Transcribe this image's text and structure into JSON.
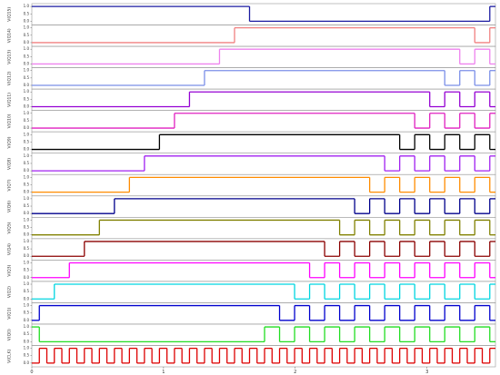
{
  "chart_data": {
    "type": "step",
    "xlim": [
      0,
      3.52
    ],
    "xticks": [
      0,
      1,
      2,
      3
    ],
    "ylim": [
      -0.1,
      1.1
    ],
    "yticks": [
      {
        "value": 0,
        "label": "0.0"
      },
      {
        "value": 0.5,
        "label": "0.5"
      },
      {
        "value": 1,
        "label": "1.0"
      }
    ],
    "series": [
      {
        "name": "V(Q15)",
        "color": "#1a1aa0",
        "x": [
          0,
          1.653,
          3.477
        ],
        "values": [
          1,
          0,
          1
        ]
      },
      {
        "name": "V(Q14)",
        "color": "#f08080",
        "x": [
          0,
          1.539,
          3.363,
          3.477
        ],
        "values": [
          0,
          1,
          0,
          1
        ]
      },
      {
        "name": "V(Q13)",
        "color": "#ee82ee",
        "x": [
          0,
          1.425,
          3.249,
          3.363,
          3.477
        ],
        "values": [
          0,
          1,
          0,
          1,
          0
        ]
      },
      {
        "name": "V(Q12)",
        "color": "#7b8fe8",
        "x": [
          0,
          1.311,
          3.135,
          3.249,
          3.363,
          3.477
        ],
        "values": [
          0,
          1,
          0,
          1,
          0,
          1
        ]
      },
      {
        "name": "V(Q11)",
        "color": "#9400d3",
        "x": [
          0,
          1.197,
          3.021,
          3.135,
          3.249,
          3.363,
          3.477
        ],
        "values": [
          0,
          1,
          0,
          1,
          0,
          1,
          0
        ]
      },
      {
        "name": "V(Q10)",
        "color": "#e020c0",
        "x": [
          0,
          1.083,
          2.907,
          3.021,
          3.135,
          3.249,
          3.363,
          3.477
        ],
        "values": [
          0,
          1,
          0,
          1,
          0,
          1,
          0,
          1
        ]
      },
      {
        "name": "V(Q9)",
        "color": "#000000",
        "x": [
          0,
          0.969,
          2.793,
          2.907,
          3.021,
          3.135,
          3.249,
          3.363,
          3.477
        ],
        "values": [
          0,
          1,
          0,
          1,
          0,
          1,
          0,
          1,
          0
        ]
      },
      {
        "name": "V(Q8)",
        "color": "#a020f0",
        "x": [
          0,
          0.855,
          2.679,
          2.793,
          2.907,
          3.021,
          3.135,
          3.249,
          3.363,
          3.477
        ],
        "values": [
          0,
          1,
          0,
          1,
          0,
          1,
          0,
          1,
          0,
          1
        ]
      },
      {
        "name": "V(Q7)",
        "color": "#ff8c00",
        "x": [
          0,
          0.741,
          2.565,
          2.679,
          2.793,
          2.907,
          3.021,
          3.135,
          3.249,
          3.363,
          3.477
        ],
        "values": [
          0,
          1,
          0,
          1,
          0,
          1,
          0,
          1,
          0,
          1,
          0
        ]
      },
      {
        "name": "V(Q6)",
        "color": "#00008b",
        "x": [
          0,
          0.627,
          2.451,
          2.565,
          2.679,
          2.793,
          2.907,
          3.021,
          3.135,
          3.249,
          3.363,
          3.477
        ],
        "values": [
          0,
          1,
          0,
          1,
          0,
          1,
          0,
          1,
          0,
          1,
          0,
          1
        ]
      },
      {
        "name": "V(Q5)",
        "color": "#808000",
        "x": [
          0,
          0.513,
          2.337,
          2.451,
          2.565,
          2.679,
          2.793,
          2.907,
          3.021,
          3.135,
          3.249,
          3.363,
          3.477
        ],
        "values": [
          0,
          1,
          0,
          1,
          0,
          1,
          0,
          1,
          0,
          1,
          0,
          1,
          0
        ]
      },
      {
        "name": "V(Q4)",
        "color": "#8b0000",
        "x": [
          0,
          0.399,
          2.223,
          2.337,
          2.451,
          2.565,
          2.679,
          2.793,
          2.907,
          3.021,
          3.135,
          3.249,
          3.363,
          3.477
        ],
        "values": [
          0,
          1,
          0,
          1,
          0,
          1,
          0,
          1,
          0,
          1,
          0,
          1,
          0,
          1
        ]
      },
      {
        "name": "V(Q3)",
        "color": "#ff00ff",
        "x": [
          0,
          0.285,
          2.109,
          2.223,
          2.337,
          2.451,
          2.565,
          2.679,
          2.793,
          2.907,
          3.021,
          3.135,
          3.249,
          3.363,
          3.477
        ],
        "values": [
          0,
          1,
          0,
          1,
          0,
          1,
          0,
          1,
          0,
          1,
          0,
          1,
          0,
          1,
          0
        ]
      },
      {
        "name": "V(Q2)",
        "color": "#00d5e0",
        "x": [
          0,
          0.171,
          1.995,
          2.109,
          2.223,
          2.337,
          2.451,
          2.565,
          2.679,
          2.793,
          2.907,
          3.021,
          3.135,
          3.249,
          3.363,
          3.477
        ],
        "values": [
          0,
          1,
          0,
          1,
          0,
          1,
          0,
          1,
          0,
          1,
          0,
          1,
          0,
          1,
          0,
          1
        ]
      },
      {
        "name": "V(Q1)",
        "color": "#0000cd",
        "x": [
          0,
          0.057,
          1.881,
          1.995,
          2.109,
          2.223,
          2.337,
          2.451,
          2.565,
          2.679,
          2.793,
          2.907,
          3.021,
          3.135,
          3.249,
          3.363,
          3.477
        ],
        "values": [
          0,
          1,
          0,
          1,
          0,
          1,
          0,
          1,
          0,
          1,
          0,
          1,
          0,
          1,
          0,
          1,
          0
        ]
      },
      {
        "name": "V(Q0)",
        "color": "#22dd22",
        "x": [
          0,
          0.057,
          1.767,
          1.881,
          1.995,
          2.109,
          2.223,
          2.337,
          2.451,
          2.565,
          2.679,
          2.793,
          2.907,
          3.021,
          3.135,
          3.249,
          3.363,
          3.477
        ],
        "values": [
          1,
          0,
          1,
          0,
          1,
          0,
          1,
          0,
          1,
          0,
          1,
          0,
          1,
          0,
          1,
          0,
          1,
          0
        ]
      },
      {
        "name": "V(CLK)",
        "color": "#dd0000",
        "x": [
          0,
          0.057,
          0.114,
          0.171,
          0.228,
          0.285,
          0.342,
          0.399,
          0.456,
          0.513,
          0.57,
          0.627,
          0.684,
          0.741,
          0.798,
          0.855,
          0.912,
          0.969,
          1.026,
          1.083,
          1.14,
          1.197,
          1.254,
          1.311,
          1.368,
          1.425,
          1.482,
          1.539,
          1.596,
          1.653,
          1.71,
          1.767,
          1.824,
          1.881,
          1.938,
          1.995,
          2.052,
          2.109,
          2.166,
          2.223,
          2.28,
          2.337,
          2.394,
          2.451,
          2.508,
          2.565,
          2.622,
          2.679,
          2.736,
          2.793,
          2.85,
          2.907,
          2.964,
          3.021,
          3.078,
          3.135,
          3.192,
          3.249,
          3.306,
          3.363,
          3.42,
          3.477
        ],
        "values": [
          0,
          1,
          0,
          1,
          0,
          1,
          0,
          1,
          0,
          1,
          0,
          1,
          0,
          1,
          0,
          1,
          0,
          1,
          0,
          1,
          0,
          1,
          0,
          1,
          0,
          1,
          0,
          1,
          0,
          1,
          0,
          1,
          0,
          1,
          0,
          1,
          0,
          1,
          0,
          1,
          0,
          1,
          0,
          1,
          0,
          1,
          0,
          1,
          0,
          1,
          0,
          1,
          0,
          1,
          0,
          1,
          0,
          1,
          0,
          1,
          0,
          1
        ]
      }
    ]
  }
}
